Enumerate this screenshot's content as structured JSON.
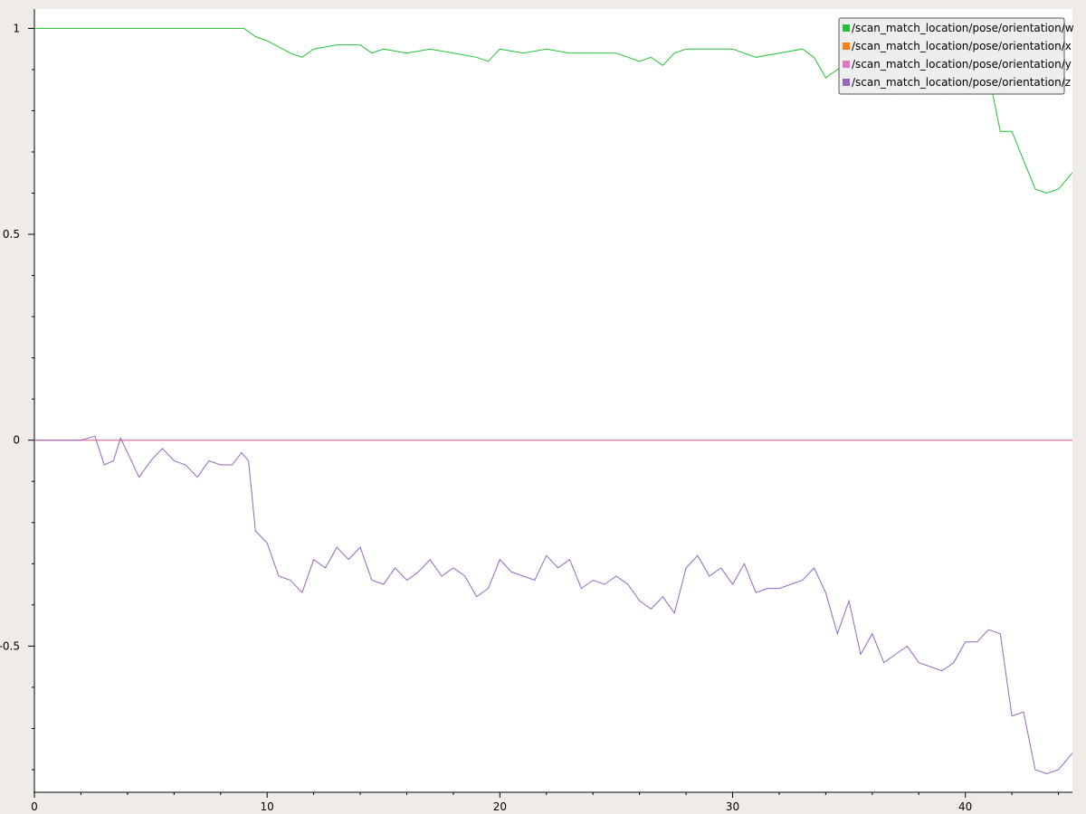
{
  "chart_data": {
    "type": "line",
    "title": "",
    "xlabel": "",
    "ylabel": "",
    "xlim": [
      0,
      44.6
    ],
    "ylim": [
      -0.855,
      1.047
    ],
    "x_major_ticks": [
      0,
      10,
      20,
      30,
      40
    ],
    "x_tick_labels": [
      "0",
      "10",
      "20",
      "30",
      "40"
    ],
    "y_major_ticks": [
      1,
      0.5,
      0,
      -0.5
    ],
    "y_tick_labels": [
      "1",
      "0.5",
      "0",
      "-0.5"
    ],
    "grid": false,
    "legend_position": "top-right",
    "series": [
      {
        "name": "/scan_match_location/pose/orientation/w",
        "color": "#22c233",
        "x": [
          0,
          2,
          3,
          4,
          5,
          6,
          7,
          8,
          9,
          9.5,
          10,
          11,
          11.5,
          12,
          13,
          14,
          14.5,
          15,
          16,
          17,
          18,
          19,
          19.5,
          20,
          21,
          22,
          23,
          24,
          25,
          26,
          26.5,
          27,
          27.5,
          28,
          29,
          30,
          31,
          32,
          33,
          33.5,
          34,
          35,
          36,
          37,
          38,
          39,
          40,
          41,
          41.5,
          42,
          42.5,
          43,
          43.5,
          44,
          44.6
        ],
        "y": [
          1.0,
          1.0,
          1.0,
          1.0,
          1.0,
          1.0,
          1.0,
          1.0,
          1.0,
          0.98,
          0.97,
          0.94,
          0.93,
          0.95,
          0.96,
          0.96,
          0.94,
          0.95,
          0.94,
          0.95,
          0.94,
          0.93,
          0.92,
          0.95,
          0.94,
          0.95,
          0.94,
          0.94,
          0.94,
          0.92,
          0.93,
          0.91,
          0.94,
          0.95,
          0.95,
          0.95,
          0.93,
          0.94,
          0.95,
          0.93,
          0.88,
          0.92,
          0.87,
          0.84,
          0.86,
          0.84,
          0.85,
          0.89,
          0.75,
          0.75,
          0.68,
          0.61,
          0.6,
          0.61,
          0.65
        ]
      },
      {
        "name": "/scan_match_location/pose/orientation/x",
        "color": "#ff7f0e",
        "x": [
          0,
          44.6
        ],
        "y": [
          0,
          0
        ]
      },
      {
        "name": "/scan_match_location/pose/orientation/y",
        "color": "#e377c2",
        "x": [
          0,
          44.6
        ],
        "y": [
          0,
          0
        ]
      },
      {
        "name": "/scan_match_location/pose/orientation/z",
        "color": "#9467bd",
        "x": [
          0,
          2,
          2.6,
          3,
          3.4,
          3.7,
          4,
          4.5,
          5,
          5.5,
          6,
          6.5,
          7,
          7.5,
          8,
          8.5,
          8.9,
          9.2,
          9.5,
          10,
          10.5,
          11,
          11.5,
          12,
          12.5,
          13,
          13.5,
          14,
          14.5,
          15,
          15.5,
          16,
          16.5,
          17,
          17.5,
          18,
          18.5,
          19,
          19.5,
          20,
          20.5,
          21,
          21.5,
          22,
          22.5,
          23,
          23.5,
          24,
          24.5,
          25,
          25.5,
          26,
          26.5,
          27,
          27.5,
          28,
          28.5,
          29,
          29.5,
          30,
          30.5,
          31,
          31.5,
          32,
          32.5,
          33,
          33.5,
          34,
          34.5,
          35,
          35.5,
          36,
          36.5,
          37,
          37.5,
          38,
          38.5,
          39,
          39.5,
          40,
          40.5,
          41,
          41.5,
          42,
          42.5,
          43,
          43.5,
          44,
          44.6
        ],
        "y": [
          0,
          0,
          0.01,
          -0.06,
          -0.05,
          0.005,
          -0.03,
          -0.09,
          -0.05,
          -0.02,
          -0.05,
          -0.06,
          -0.09,
          -0.05,
          -0.06,
          -0.06,
          -0.03,
          -0.05,
          -0.22,
          -0.25,
          -0.33,
          -0.34,
          -0.37,
          -0.29,
          -0.31,
          -0.26,
          -0.29,
          -0.26,
          -0.34,
          -0.35,
          -0.31,
          -0.34,
          -0.32,
          -0.29,
          -0.33,
          -0.31,
          -0.33,
          -0.38,
          -0.36,
          -0.29,
          -0.32,
          -0.33,
          -0.34,
          -0.28,
          -0.31,
          -0.29,
          -0.36,
          -0.34,
          -0.35,
          -0.33,
          -0.35,
          -0.39,
          -0.41,
          -0.38,
          -0.42,
          -0.31,
          -0.28,
          -0.33,
          -0.31,
          -0.35,
          -0.3,
          -0.37,
          -0.36,
          -0.36,
          -0.35,
          -0.34,
          -0.31,
          -0.37,
          -0.47,
          -0.39,
          -0.52,
          -0.47,
          -0.54,
          -0.52,
          -0.5,
          -0.54,
          -0.55,
          -0.56,
          -0.54,
          -0.49,
          -0.49,
          -0.46,
          -0.47,
          -0.67,
          -0.66,
          -0.8,
          -0.81,
          -0.8,
          -0.76
        ]
      }
    ]
  }
}
